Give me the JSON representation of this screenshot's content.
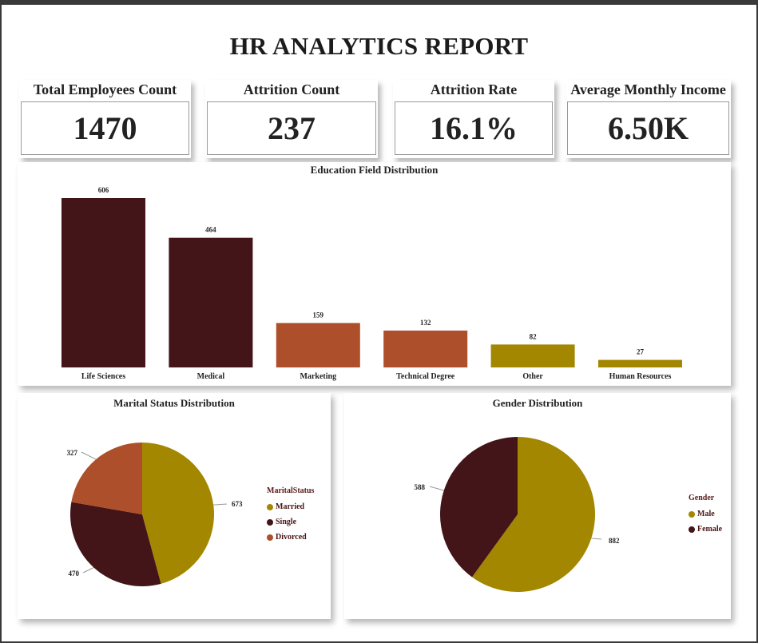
{
  "report": {
    "title": "HR ANALYTICS REPORT"
  },
  "kpis": [
    {
      "label": "Total Employees Count",
      "value": "1470"
    },
    {
      "label": "Attrition Count",
      "value": "237"
    },
    {
      "label": "Attrition Rate",
      "value": "16.1%"
    },
    {
      "label": "Average Monthly Income",
      "value": "6.50K"
    }
  ],
  "colors": {
    "maroon": "#431418",
    "rust": "#ad4f2a",
    "olive": "#a48700"
  },
  "chart_data": [
    {
      "type": "bar",
      "title": "Education Field Distribution",
      "categories": [
        "Life Sciences",
        "Medical",
        "Marketing",
        "Technical Degree",
        "Other",
        "Human Resources"
      ],
      "values": [
        606,
        464,
        159,
        132,
        82,
        27
      ],
      "bar_colors": [
        "#431418",
        "#431418",
        "#ad4f2a",
        "#ad4f2a",
        "#a48700",
        "#a48700"
      ],
      "xlabel": "",
      "ylabel": "",
      "ylim": [
        0,
        606
      ]
    },
    {
      "type": "pie",
      "title": "Marital Status Distribution",
      "legend_title": "MaritalStatus",
      "legend_position": "right",
      "labels": [
        "Married",
        "Single",
        "Divorced"
      ],
      "values": [
        673,
        470,
        327
      ],
      "colors": [
        "#a48700",
        "#431418",
        "#ad4f2a"
      ]
    },
    {
      "type": "pie",
      "title": "Gender Distribution",
      "legend_title": "Gender",
      "legend_position": "right",
      "labels": [
        "Male",
        "Female"
      ],
      "values": [
        882,
        588
      ],
      "colors": [
        "#a48700",
        "#431418"
      ]
    }
  ]
}
